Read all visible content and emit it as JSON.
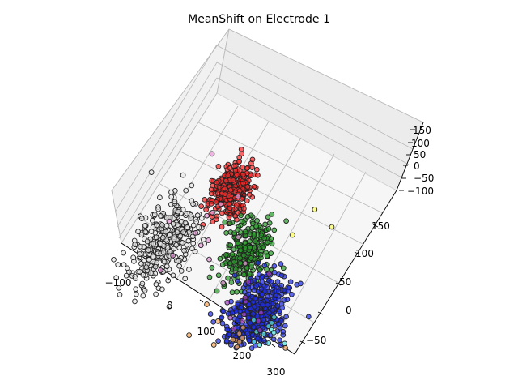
{
  "chart_data": {
    "type": "scatter",
    "projection": "3d",
    "title": "MeanShift on Electrode 1",
    "xlabel": "",
    "ylabel": "",
    "zlabel": "",
    "x_ticks": [
      "−100",
      "0",
      "100",
      "200",
      "300"
    ],
    "y_ticks": [
      "−50",
      "0",
      "50",
      "100",
      "150"
    ],
    "z_ticks": [
      "−100",
      "−50",
      "0",
      "50",
      "100",
      "150"
    ],
    "xlim": [
      -150,
      320
    ],
    "ylim": [
      -80,
      180
    ],
    "zlim": [
      -110,
      160
    ],
    "grid": true,
    "clusters": [
      {
        "color": "#ff2a2a",
        "approx_points": 320,
        "center": {
          "x": -20,
          "y": 150,
          "z": 100
        },
        "spread": {
          "x": 20,
          "y": 20,
          "z": 15
        }
      },
      {
        "color": "#e8e8e8",
        "approx_points": 380,
        "center": {
          "x": -110,
          "y": 60,
          "z": -20
        },
        "spread": {
          "x": 30,
          "y": 35,
          "z": 25
        }
      },
      {
        "color": "#2a9d2a",
        "approx_points": 260,
        "center": {
          "x": 60,
          "y": 105,
          "z": 0
        },
        "spread": {
          "x": 25,
          "y": 25,
          "z": 20
        }
      },
      {
        "color": "#1f2ee8",
        "approx_points": 450,
        "center": {
          "x": 150,
          "y": 40,
          "z": -10
        },
        "spread": {
          "x": 30,
          "y": 30,
          "z": 20
        }
      },
      {
        "color": "#55e3e3",
        "approx_points": 12,
        "center": {
          "x": 200,
          "y": 30,
          "z": -10
        },
        "spread": {
          "x": 30,
          "y": 20,
          "z": 20
        }
      },
      {
        "color": "#f5a85a",
        "approx_points": 12,
        "center": {
          "x": 130,
          "y": 0,
          "z": -30
        },
        "spread": {
          "x": 40,
          "y": 20,
          "z": 20
        }
      },
      {
        "color": "#e99ad9",
        "approx_points": 15,
        "center": {
          "x": -30,
          "y": 80,
          "z": 10
        },
        "spread": {
          "x": 40,
          "y": 40,
          "z": 20
        }
      },
      {
        "color": "#a13fbf",
        "approx_points": 12,
        "center": {
          "x": 130,
          "y": 40,
          "z": -10
        },
        "spread": {
          "x": 25,
          "y": 20,
          "z": 20
        }
      },
      {
        "color": "#ffff66",
        "approx_points": 3,
        "center": {
          "x": 180,
          "y": 160,
          "z": 100
        },
        "spread": {
          "x": 20,
          "y": 20,
          "z": 20
        }
      }
    ]
  }
}
